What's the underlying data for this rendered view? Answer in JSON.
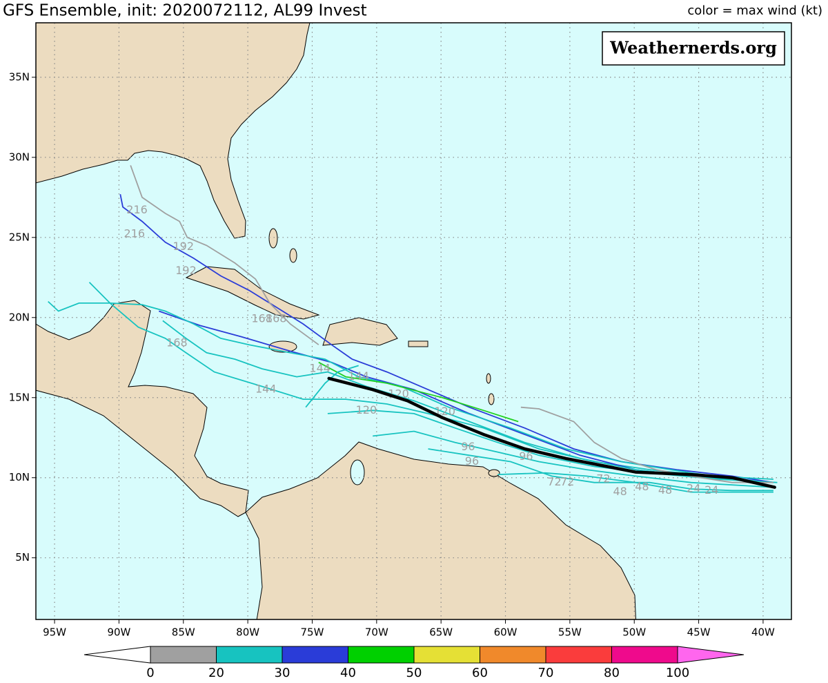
{
  "map": {
    "title": "GFS Ensemble, init: 2020072112, AL99 Invest",
    "legend_title": "color = max wind (kt)",
    "watermark": "Weathernerds.org",
    "xlim": [
      -96.45,
      -37.8
    ],
    "ylim": [
      1.15,
      38.4
    ],
    "grid": true,
    "xticks": [
      {
        "value": -95,
        "label": "95W"
      },
      {
        "value": -90,
        "label": "90W"
      },
      {
        "value": -85,
        "label": "85W"
      },
      {
        "value": -80,
        "label": "80W"
      },
      {
        "value": -75,
        "label": "75W"
      },
      {
        "value": -70,
        "label": "70W"
      },
      {
        "value": -65,
        "label": "65W"
      },
      {
        "value": -60,
        "label": "60W"
      },
      {
        "value": -55,
        "label": "55W"
      },
      {
        "value": -50,
        "label": "50W"
      },
      {
        "value": -45,
        "label": "45W"
      },
      {
        "value": -40,
        "label": "40W"
      }
    ],
    "yticks": [
      {
        "value": 5,
        "label": "5N"
      },
      {
        "value": 10,
        "label": "10N"
      },
      {
        "value": 15,
        "label": "15N"
      },
      {
        "value": 20,
        "label": "20N"
      },
      {
        "value": 25,
        "label": "25N"
      },
      {
        "value": 30,
        "label": "30N"
      },
      {
        "value": 35,
        "label": "35N"
      }
    ],
    "tracks": [
      {
        "color": "#2a3cd8",
        "lon": [
          -89.9,
          -89.7,
          -88.2,
          -86.4,
          -84.2,
          -82.1,
          -79.9,
          -78.3,
          -75.7,
          -73.5,
          -71.9,
          -69.2,
          -66.0,
          -62.8,
          -58.5,
          -54.7,
          -51.0,
          -46.7,
          -42.4,
          -39.2
        ],
        "lat": [
          27.7,
          26.9,
          26.0,
          24.7,
          23.7,
          22.6,
          21.7,
          20.9,
          19.6,
          18.3,
          17.4,
          16.6,
          15.5,
          14.4,
          13.1,
          11.8,
          11.0,
          10.5,
          10.1,
          9.7
        ]
      },
      {
        "color": "#a0a0a0",
        "lon": [
          -89.1,
          -88.2,
          -86.4,
          -85.3,
          -84.7,
          -83.2,
          -81.0,
          -79.4,
          -78.3,
          -76.7,
          -74.5
        ],
        "lat": [
          29.5,
          27.5,
          26.5,
          26.0,
          25.0,
          24.5,
          23.4,
          22.4,
          20.9,
          19.6,
          18.3
        ]
      },
      {
        "color": "#17c3c0",
        "lon": [
          -92.3,
          -90.7,
          -88.5,
          -86.4,
          -84.8,
          -82.6,
          -78.9,
          -75.7,
          -72.4,
          -69.2,
          -66.0,
          -61.7,
          -57.4,
          -53.1,
          -48.8,
          -44.0,
          -39.2
        ],
        "lat": [
          22.2,
          20.9,
          19.4,
          18.7,
          17.8,
          16.6,
          15.7,
          14.9,
          14.9,
          14.6,
          14.0,
          13.1,
          11.8,
          11.0,
          10.5,
          10.1,
          9.9
        ]
      },
      {
        "color": "#2a3cd8",
        "lon": [
          -86.9,
          -83.7,
          -80.5,
          -76.7,
          -73.5,
          -70.8,
          -67.1,
          -62.8,
          -58.5,
          -54.2,
          -49.9,
          -45.6,
          -39.2
        ],
        "lat": [
          20.4,
          19.5,
          18.8,
          17.9,
          17.2,
          16.3,
          15.5,
          14.0,
          12.7,
          11.4,
          10.5,
          10.1,
          9.7
        ]
      },
      {
        "color": "#17c3c0",
        "lon": [
          -95.5,
          -94.7,
          -93.1,
          -90.7,
          -88.2,
          -86.4,
          -84.2,
          -82.1,
          -79.9,
          -76.7,
          -74.0,
          -71.4,
          -68.1,
          -64.4,
          -59.6,
          -55.3,
          -51.0,
          -45.6,
          -39.7
        ],
        "lat": [
          21.0,
          20.4,
          20.9,
          20.9,
          20.8,
          20.4,
          19.6,
          18.7,
          18.3,
          17.8,
          17.4,
          16.3,
          15.7,
          14.4,
          13.1,
          11.8,
          11.0,
          10.3,
          9.7
        ]
      },
      {
        "color": "#17c3c0",
        "lon": [
          -86.6,
          -84.8,
          -83.2,
          -81.0,
          -78.9,
          -76.2,
          -73.8,
          -70.8,
          -67.1,
          -62.8,
          -58.5,
          -54.2,
          -49.9,
          -45.6,
          -39.2
        ],
        "lat": [
          19.8,
          18.7,
          17.8,
          17.4,
          16.8,
          16.3,
          16.6,
          15.7,
          14.8,
          13.5,
          12.2,
          11.2,
          10.5,
          10.1,
          9.7
        ]
      },
      {
        "color": "#17c3c0",
        "lon": [
          -73.8,
          -70.3,
          -67.1,
          -63.9,
          -60.6,
          -57.4,
          -53.1,
          -48.8,
          -43.5,
          -38.9
        ],
        "lat": [
          14.0,
          14.2,
          14.0,
          13.1,
          12.2,
          11.4,
          10.7,
          10.3,
          9.9,
          9.7
        ]
      },
      {
        "color": "#17c3c0",
        "lon": [
          -70.3,
          -67.1,
          -63.9,
          -60.6,
          -57.4,
          -53.7,
          -49.9,
          -45.6,
          -39.2
        ],
        "lat": [
          12.6,
          12.9,
          12.2,
          11.6,
          11.0,
          10.5,
          10.1,
          9.7,
          9.4
        ]
      },
      {
        "color": "#a0a0a0",
        "lon": [
          -58.8,
          -57.4,
          -54.7,
          -53.1,
          -51.0,
          -48.3,
          -45.6,
          -42.4,
          -39.2
        ],
        "lat": [
          14.4,
          14.3,
          13.5,
          12.2,
          11.2,
          10.5,
          10.1,
          9.7,
          9.7
        ]
      },
      {
        "color": "#17c3c0",
        "lon": [
          -66.0,
          -62.8,
          -59.6,
          -56.4,
          -53.1,
          -48.8,
          -45.6,
          -42.4,
          -39.2
        ],
        "lat": [
          11.8,
          11.4,
          11.0,
          10.1,
          9.7,
          9.7,
          9.3,
          9.2,
          9.2
        ]
      },
      {
        "color": "#20d020",
        "lon": [
          -74.5,
          -72.4,
          -69.2,
          -64.9,
          -61.7,
          -59.0
        ],
        "lat": [
          17.2,
          16.3,
          15.9,
          15.0,
          14.2,
          13.5
        ]
      },
      {
        "color": "#17c3c0",
        "lon": [
          -75.5,
          -74.0,
          -73.0,
          -71.4
        ],
        "lat": [
          14.4,
          15.9,
          16.6,
          17.0
        ]
      },
      {
        "color": "#17c3c0",
        "lon": [
          -60.6,
          -56.9,
          -53.7,
          -49.9,
          -45.6,
          -39.2
        ],
        "lat": [
          10.2,
          10.3,
          10.1,
          9.7,
          9.1,
          9.1
        ]
      }
    ],
    "mean_track": {
      "color": "#000000",
      "lon": [
        -73.7,
        -70.3,
        -67.6,
        -64.9,
        -61.7,
        -58.5,
        -55.3,
        -52.1,
        -49.9,
        -45.6,
        -42.4,
        -39.1
      ],
      "lat": [
        16.2,
        15.5,
        14.8,
        13.75,
        12.7,
        11.8,
        11.2,
        10.7,
        10.35,
        10.2,
        10.0,
        9.4
      ]
    },
    "hour_labels": [
      {
        "hour": 216,
        "lon": -88.6,
        "lat": 26.7
      },
      {
        "hour": 216,
        "lon": -88.8,
        "lat": 25.2
      },
      {
        "hour": 192,
        "lon": -85.0,
        "lat": 24.4
      },
      {
        "hour": 192,
        "lon": -84.8,
        "lat": 22.9
      },
      {
        "hour": 168,
        "lon": -78.9,
        "lat": 19.9
      },
      {
        "hour": 168,
        "lon": -77.8,
        "lat": 19.9
      },
      {
        "hour": 168,
        "lon": -85.5,
        "lat": 18.4
      },
      {
        "hour": 144,
        "lon": -74.4,
        "lat": 16.8
      },
      {
        "hour": 144,
        "lon": -78.6,
        "lat": 15.5
      },
      {
        "hour": 144,
        "lon": -71.4,
        "lat": 16.3
      },
      {
        "hour": 120,
        "lon": -68.3,
        "lat": 15.2
      },
      {
        "hour": 120,
        "lon": -70.8,
        "lat": 14.2
      },
      {
        "hour": 120,
        "lon": -64.7,
        "lat": 14.1
      },
      {
        "hour": 96,
        "lon": -62.9,
        "lat": 11.9
      },
      {
        "hour": 96,
        "lon": -62.6,
        "lat": 11.0
      },
      {
        "hour": 96,
        "lon": -58.4,
        "lat": 11.3
      },
      {
        "hour": 72,
        "lon": -56.2,
        "lat": 9.7
      },
      {
        "hour": 72,
        "lon": -55.2,
        "lat": 9.7
      },
      {
        "hour": 72,
        "lon": -52.4,
        "lat": 9.9
      },
      {
        "hour": 48,
        "lon": -51.1,
        "lat": 9.1
      },
      {
        "hour": 48,
        "lon": -49.4,
        "lat": 9.4
      },
      {
        "hour": 48,
        "lon": -47.6,
        "lat": 9.2
      },
      {
        "hour": 24,
        "lon": -45.4,
        "lat": 9.3
      },
      {
        "hour": 24,
        "lon": -44.0,
        "lat": 9.2
      }
    ],
    "colorbar": {
      "bounds": [
        0,
        20,
        30,
        40,
        50,
        60,
        70,
        80,
        100
      ],
      "colors": [
        "#a0a0a0",
        "#17c3c0",
        "#2a3cd8",
        "#00d000",
        "#e5e035",
        "#f0892b",
        "#fa3c3c",
        "#ef0a8c"
      ],
      "under_color": "#ffffff",
      "over_color": "#ff66ee"
    }
  }
}
